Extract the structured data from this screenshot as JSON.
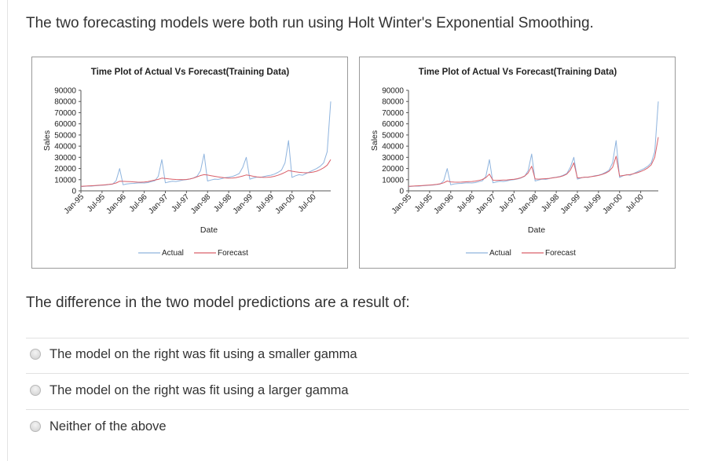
{
  "intro_text": "The two forecasting models were both run using Holt Winter's Exponential Smoothing.",
  "colors": {
    "actual": "#8fb4de",
    "forecast": "#d9606a"
  },
  "chart_data": [
    {
      "type": "line",
      "title": "Time Plot of Actual Vs Forecast(Training Data)",
      "xlabel": "Date",
      "ylabel": "Sales",
      "ylim": [
        0,
        90000
      ],
      "yticks": [
        "90000",
        "80000",
        "70000",
        "60000",
        "50000",
        "40000",
        "30000",
        "20000",
        "10000",
        "0"
      ],
      "xticks": [
        "Jan-95",
        "Jul-95",
        "Jan-96",
        "Jul-96",
        "Jan-97",
        "Jul-97",
        "Jan-98",
        "Jul-98",
        "Jan-99",
        "Jul-99",
        "Jan-00",
        "Jul-00"
      ],
      "x_start": "1995-01",
      "grid": false,
      "legend": "bottom",
      "series": [
        {
          "name": "Actual",
          "values": [
            3800,
            4100,
            4300,
            4200,
            4600,
            4800,
            5000,
            5200,
            5600,
            6000,
            9000,
            20000,
            5400,
            6100,
            6500,
            6700,
            7000,
            7200,
            7000,
            7400,
            8200,
            9000,
            13000,
            28000,
            7200,
            8000,
            8600,
            8400,
            9000,
            9600,
            10000,
            10600,
            11500,
            13000,
            18000,
            33000,
            8800,
            9700,
            10500,
            10300,
            11000,
            11800,
            12200,
            12800,
            14000,
            15500,
            21000,
            30000,
            10500,
            11500,
            12300,
            12000,
            12800,
            13500,
            14000,
            15000,
            16500,
            18500,
            25000,
            45000,
            12000,
            13500,
            14500,
            14000,
            15500,
            17000,
            18500,
            20000,
            22000,
            25000,
            35000,
            80000
          ]
        },
        {
          "name": "Forecast",
          "values": [
            4000,
            4200,
            4400,
            4600,
            4800,
            5000,
            5200,
            5500,
            5800,
            6200,
            7000,
            8600,
            8500,
            8400,
            8200,
            8000,
            7800,
            7700,
            7900,
            8300,
            8900,
            9600,
            10300,
            11400,
            11100,
            10700,
            10400,
            10200,
            10100,
            10000,
            10200,
            10600,
            11400,
            12600,
            13700,
            14500,
            14100,
            13600,
            13000,
            12500,
            12000,
            11600,
            11300,
            11400,
            11800,
            12500,
            13300,
            14200,
            13700,
            13000,
            12500,
            12200,
            12000,
            12100,
            12400,
            13000,
            13900,
            15100,
            16600,
            18200,
            17600,
            17000,
            16600,
            16300,
            16200,
            16400,
            16800,
            17600,
            18900,
            20600,
            23000,
            28000
          ]
        }
      ]
    },
    {
      "type": "line",
      "title": "Time Plot of Actual Vs Forecast(Training Data)",
      "xlabel": "Date",
      "ylabel": "Sales",
      "ylim": [
        0,
        90000
      ],
      "yticks": [
        "90000",
        "80000",
        "70000",
        "60000",
        "50000",
        "40000",
        "30000",
        "20000",
        "10000",
        "0"
      ],
      "xticks": [
        "Jan-95",
        "Jul-95",
        "Jan-96",
        "Jul-96",
        "Jan-97",
        "Jul-97",
        "Jan-98",
        "Jul-98",
        "Jan-99",
        "Jul-99",
        "Jan-00",
        "Jul-00"
      ],
      "x_start": "1995-01",
      "grid": false,
      "legend": "bottom",
      "series": [
        {
          "name": "Actual",
          "values": [
            3800,
            4100,
            4300,
            4200,
            4600,
            4800,
            5000,
            5200,
            5600,
            6000,
            9000,
            20000,
            5400,
            6100,
            6500,
            6700,
            7000,
            7200,
            7000,
            7400,
            8200,
            9000,
            13000,
            28000,
            7200,
            8000,
            8600,
            8400,
            9000,
            9600,
            10000,
            10600,
            11500,
            13000,
            18000,
            33000,
            8800,
            9700,
            10500,
            10300,
            11000,
            11800,
            12200,
            12800,
            14000,
            15500,
            21000,
            30000,
            10500,
            11500,
            12300,
            12000,
            12800,
            13500,
            14000,
            15000,
            16500,
            18500,
            25000,
            45000,
            12000,
            13500,
            14500,
            14000,
            15500,
            17000,
            18500,
            20000,
            22000,
            25000,
            35000,
            80000
          ]
        },
        {
          "name": "Forecast",
          "values": [
            4000,
            4200,
            4400,
            4600,
            4800,
            5000,
            5200,
            5500,
            5800,
            6300,
            7200,
            8800,
            8000,
            7800,
            7700,
            7800,
            8000,
            8200,
            8400,
            8700,
            9300,
            10200,
            11800,
            15000,
            9500,
            9400,
            9500,
            9600,
            9800,
            10100,
            10400,
            10900,
            11800,
            13200,
            16000,
            22000,
            10600,
            10500,
            10700,
            10900,
            11200,
            11600,
            12000,
            12600,
            13500,
            15000,
            18500,
            25000,
            11600,
            11800,
            12100,
            12300,
            12700,
            13200,
            13800,
            14600,
            15800,
            17500,
            21000,
            31000,
            13300,
            13700,
            14200,
            14600,
            15300,
            16200,
            17300,
            18700,
            20500,
            23300,
            30000,
            48000
          ]
        }
      ]
    }
  ],
  "question_text": "The difference in the two model predictions are a result of:",
  "options": [
    {
      "label": "The model on the right was fit using a smaller gamma"
    },
    {
      "label": "The model on the right was fit using a larger gamma"
    },
    {
      "label": "Neither of the above"
    }
  ]
}
